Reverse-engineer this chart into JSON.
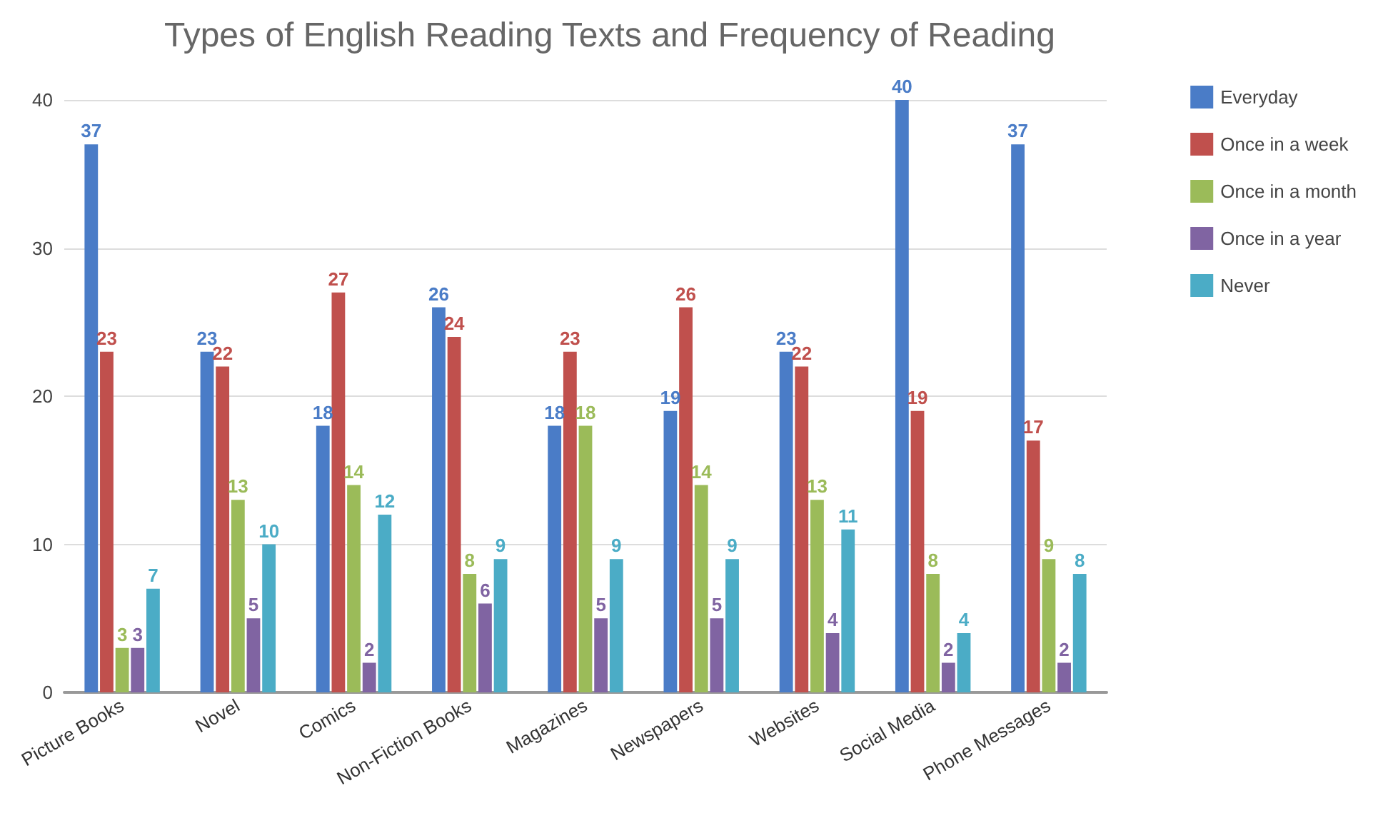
{
  "chart_data": {
    "type": "bar",
    "title": "Types of English Reading Texts and Frequency of Reading",
    "categories": [
      "Picture Books",
      "Novel",
      "Comics",
      "Non-Fiction Books",
      "Magazines",
      "Newspapers",
      "Websites",
      "Social Media",
      "Phone Messages"
    ],
    "series": [
      {
        "name": "Everyday",
        "color": "#4a7cc7",
        "values": [
          37,
          23,
          18,
          26,
          18,
          19,
          23,
          40,
          37
        ]
      },
      {
        "name": "Once in a week",
        "color": "#c0504d",
        "values": [
          23,
          22,
          27,
          24,
          23,
          26,
          22,
          19,
          17
        ]
      },
      {
        "name": "Once in a month",
        "color": "#9bbb59",
        "values": [
          3,
          13,
          14,
          8,
          18,
          14,
          13,
          8,
          9
        ]
      },
      {
        "name": "Once in a year",
        "color": "#8064a2",
        "values": [
          3,
          5,
          2,
          6,
          5,
          5,
          4,
          2,
          2
        ]
      },
      {
        "name": "Never",
        "color": "#4bacc6",
        "values": [
          7,
          10,
          12,
          9,
          9,
          9,
          11,
          4,
          8
        ]
      }
    ],
    "ylim": [
      0,
      40
    ],
    "yticks": [
      0,
      10,
      20,
      30,
      40
    ],
    "grid": "y",
    "legend": "top right",
    "data_labels": true
  }
}
